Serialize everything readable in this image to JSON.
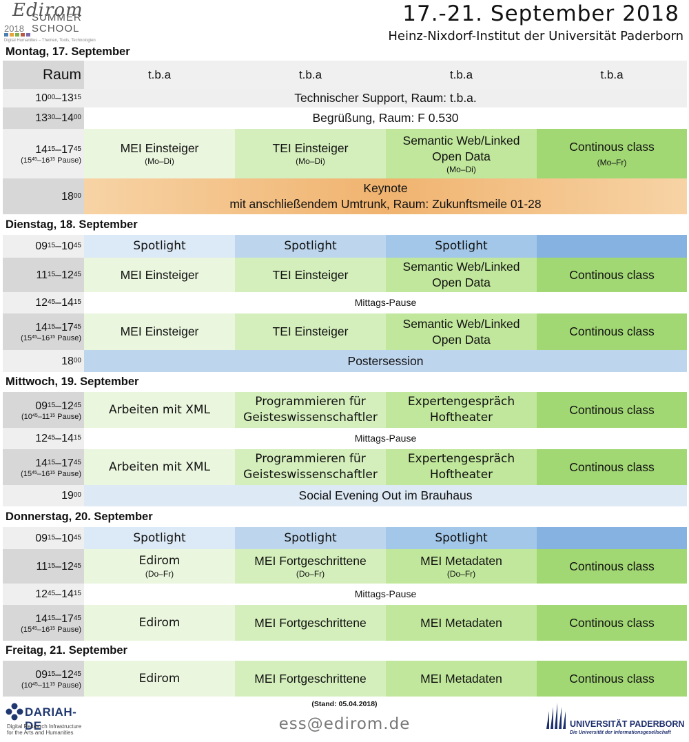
{
  "header": {
    "title": "17.-21. September 2018",
    "subtitle": "Heinz-Nixdorf-Institut der Universität Paderborn"
  },
  "logo": {
    "word": "Edirom",
    "year": "2018",
    "summer": "SUMMER",
    "school": "SCHOOL",
    "tagline": "Digital Humanities – Themen, Tools, Technologien"
  },
  "rooms": {
    "label": "Raum",
    "r1": "t.b.a",
    "r2": "t.b.a",
    "r3": "t.b.a",
    "r4": "t.b.a"
  },
  "days": {
    "mon": {
      "title": "Montag, 17. September",
      "support": "Technischer Support, Raum: t.b.a.",
      "welcome": "Begrüßung, Raum: F 0.530",
      "mei": "MEI Einsteiger",
      "mei_s": "(Mo–Di)",
      "tei": "TEI Einsteiger",
      "tei_s": "(Mo–Di)",
      "sw1": "Semantic Web/Linked",
      "sw2": "Open Data",
      "sw_s": "(Mo–Di)",
      "cc": "Continous class",
      "cc_s": "(Mo–Fr)",
      "key1": "Keynote",
      "key2": "mit anschließendem Umtrunk, Raum: Zukunftsmeile 01-28"
    },
    "tue": {
      "title": "Dienstag, 18. September",
      "spot": "Spotlight",
      "mei": "MEI Einsteiger",
      "tei": "TEI Einsteiger",
      "sw1": "Semantic Web/Linked",
      "sw2": "Open Data",
      "cc": "Continous class",
      "lunch": "Mittags-Pause",
      "poster": "Postersession"
    },
    "wed": {
      "title": "Mittwoch, 19. September",
      "xml": "Arbeiten mit XML",
      "prog1": "Programmieren für",
      "prog2": "Geisteswissenschaftler",
      "exp1": "Expertengespräch",
      "exp2": "Hoftheater",
      "cc": "Continous class",
      "lunch": "Mittags-Pause",
      "social": "Social Evening Out im Brauhaus"
    },
    "thu": {
      "title": "Donnerstag, 20. September",
      "spot": "Spotlight",
      "edirom": "Edirom",
      "edirom_s": "(Do–Fr)",
      "meif": "MEI Fortgeschrittene",
      "meif_s": "(Do–Fr)",
      "meim": "MEI Metadaten",
      "meim_s": "(Do–Fr)",
      "cc": "Continous class",
      "lunch": "Mittags-Pause"
    },
    "fri": {
      "title": "Freitag, 21. September",
      "edirom": "Edirom",
      "meif": "MEI Fortgeschrittene",
      "meim": "MEI Metadaten",
      "cc": "Continous class"
    }
  },
  "times": {
    "h10": "10",
    "m00": "00",
    "h13": "13",
    "m15": "15",
    "m30": "30",
    "h14": "14",
    "h17": "17",
    "m45": "45",
    "h18": "18",
    "h09": "09",
    "h11": "11",
    "h12": "12",
    "h19": "19",
    "h15": "15",
    "h16": "16",
    "h10b": "10",
    "h11b": "11",
    "pause": "Pause",
    "dash": "–"
  },
  "footer": {
    "stand": "(Stand: 05.04.2018)",
    "email": "ess@edirom.de",
    "dariah": "DARIAH-DE",
    "dariah_sub1": "Digital Research Infrastructure",
    "dariah_sub2": "for the Arts and Humanities",
    "upb": "UNIVERSITÄT PADERBORN",
    "upb_sub": "Die Universität der Informationsgesellschaft"
  },
  "colors": {
    "green1": "#eaf6de",
    "green2": "#d4efbc",
    "green3": "#c0e79b",
    "green4": "#a2d874",
    "blue1": "#dce9f6",
    "blue2": "#bdd6ed",
    "blue3": "#a3c7e9",
    "blue4": "#85b2e0",
    "orange": "#f0b36f"
  }
}
